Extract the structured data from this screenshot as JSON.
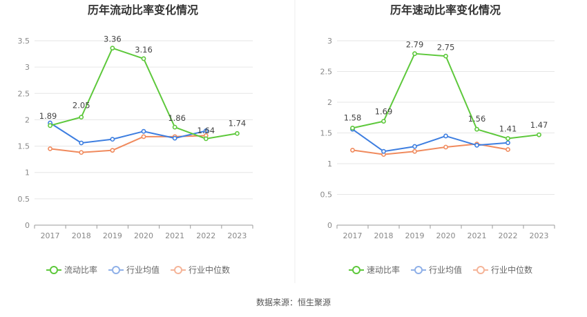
{
  "source_label": "数据来源：恒生聚源",
  "colors": {
    "green": "#5dc83b",
    "blue": "#3d7ee0",
    "orange": "#f08a5d",
    "legend_blue": "#8fb0e8",
    "legend_orange": "#f5b498"
  },
  "chart_data": [
    {
      "type": "line",
      "title": "历年流动比率变化情况",
      "categories": [
        "2017",
        "2018",
        "2019",
        "2020",
        "2021",
        "2022",
        "2023"
      ],
      "ylim": [
        0,
        3.5
      ],
      "yticks": [
        0,
        0.5,
        1,
        1.5,
        2,
        2.5,
        3,
        3.5
      ],
      "ytick_labels": [
        "0",
        "0.5",
        "1",
        "1.5",
        "2",
        "2.5",
        "3",
        "3.5"
      ],
      "grid": true,
      "legend_position": "bottom",
      "series": [
        {
          "name": "流动比率",
          "color": "#5dc83b",
          "values": [
            1.89,
            2.05,
            3.36,
            3.16,
            1.86,
            1.64,
            1.74
          ],
          "labels": [
            "1.89",
            "2.05",
            "3.36",
            "3.16",
            "1.86",
            "1.64",
            "1.74"
          ]
        },
        {
          "name": "行业均值",
          "color": "#3d7ee0",
          "values": [
            1.94,
            1.56,
            1.63,
            1.78,
            1.65,
            1.79,
            null
          ]
        },
        {
          "name": "行业中位数",
          "color": "#f08a5d",
          "values": [
            1.45,
            1.38,
            1.42,
            1.68,
            1.68,
            1.7,
            null
          ]
        }
      ]
    },
    {
      "type": "line",
      "title": "历年速动比率变化情况",
      "categories": [
        "2017",
        "2018",
        "2019",
        "2020",
        "2021",
        "2022",
        "2023"
      ],
      "ylim": [
        0,
        3
      ],
      "yticks": [
        0,
        0.5,
        1,
        1.5,
        2,
        2.5,
        3
      ],
      "ytick_labels": [
        "0",
        "0.5",
        "1",
        "1.5",
        "2",
        "2.5",
        "3"
      ],
      "grid": true,
      "legend_position": "bottom",
      "series": [
        {
          "name": "速动比率",
          "color": "#5dc83b",
          "values": [
            1.58,
            1.69,
            2.79,
            2.75,
            1.56,
            1.41,
            1.47
          ],
          "labels": [
            "1.58",
            "1.69",
            "2.79",
            "2.75",
            "1.56",
            "1.41",
            "1.47"
          ]
        },
        {
          "name": "行业均值",
          "color": "#3d7ee0",
          "values": [
            1.56,
            1.2,
            1.28,
            1.45,
            1.3,
            1.34,
            null
          ]
        },
        {
          "name": "行业中位数",
          "color": "#f08a5d",
          "values": [
            1.22,
            1.15,
            1.2,
            1.27,
            1.32,
            1.23,
            null
          ]
        }
      ]
    }
  ]
}
